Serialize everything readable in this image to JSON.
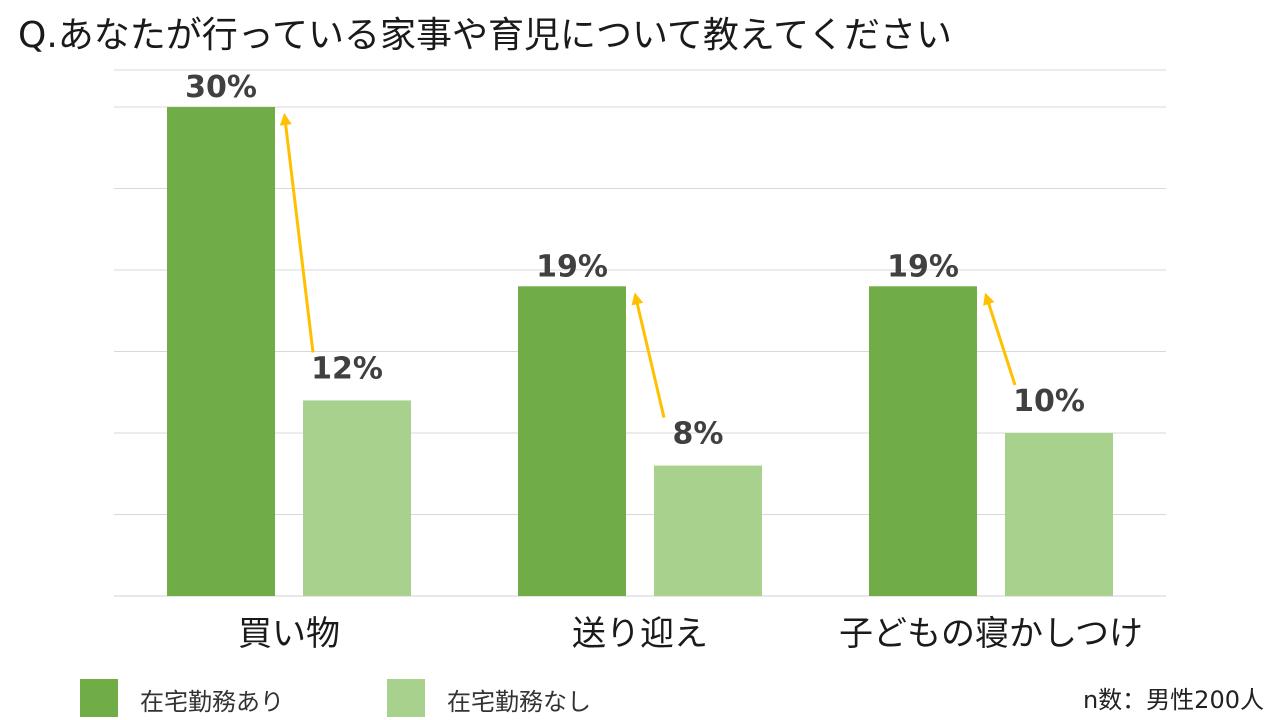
{
  "title": "Q.あなたが行っている家事や育児について教えてください",
  "note": "n数：男性200人",
  "colors": {
    "series_dark": "#70AD47",
    "series_light": "#A9D18E",
    "arrow": "#FFC000",
    "grid": "#D9D9D9",
    "value_label": "#404040"
  },
  "legend": [
    {
      "label": "在宅勤務あり",
      "color": "#70AD47"
    },
    {
      "label": "在宅勤務なし",
      "color": "#A9D18E"
    }
  ],
  "chart_data": {
    "type": "bar",
    "title": "Q.あなたが行っている家事や育児について教えてください",
    "categories": [
      "買い物",
      "送り迎え",
      "子どもの寝かしつけ"
    ],
    "series": [
      {
        "name": "在宅勤務あり",
        "values": [
          30,
          19,
          19
        ],
        "labels": [
          "30%",
          "19%",
          "19%"
        ],
        "color": "#70AD47"
      },
      {
        "name": "在宅勤務なし",
        "values": [
          12,
          8,
          10
        ],
        "labels": [
          "12%",
          "8%",
          "10%"
        ],
        "color": "#A9D18E"
      }
    ],
    "ylim": [
      0,
      30
    ],
    "y_axis_labels_shown": false,
    "grid": true,
    "legend_position": "bottom-left",
    "annotations": "arrows from each 在宅勤務なし bar up to the matching 在宅勤務あり bar"
  }
}
